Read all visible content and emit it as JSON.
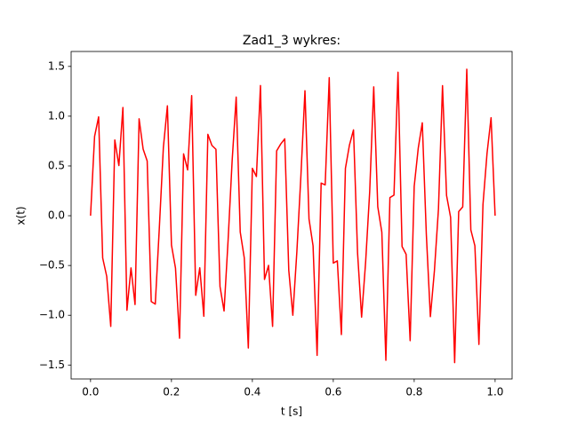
{
  "chart_data": {
    "type": "line",
    "title": "Zad1_3 wykres:",
    "x_label": "t [s]",
    "y_label": "x(t)",
    "x": [
      0,
      0.01,
      0.02,
      0.03,
      0.04,
      0.05,
      0.06,
      0.07,
      0.08,
      0.09,
      0.1,
      0.11,
      0.12,
      0.13,
      0.14,
      0.15,
      0.16,
      0.17,
      0.18,
      0.19,
      0.2,
      0.21,
      0.22,
      0.23,
      0.24,
      0.25,
      0.26,
      0.27,
      0.28,
      0.29,
      0.3,
      0.31,
      0.32,
      0.33,
      0.34,
      0.35,
      0.36,
      0.37,
      0.38,
      0.39,
      0.4,
      0.41,
      0.42,
      0.43,
      0.44,
      0.45,
      0.46,
      0.47,
      0.48,
      0.49,
      0.5,
      0.51,
      0.52,
      0.53,
      0.54,
      0.55,
      0.56,
      0.57,
      0.58,
      0.59,
      0.6,
      0.61,
      0.62,
      0.63,
      0.64,
      0.65,
      0.66,
      0.67,
      0.68,
      0.69,
      0.7,
      0.71,
      0.72,
      0.73,
      0.74,
      0.75,
      0.76,
      0.77,
      0.78,
      0.79,
      0.8,
      0.81,
      0.82,
      0.83,
      0.84,
      0.85,
      0.86,
      0.87,
      0.88,
      0.89,
      0.9,
      0.91,
      0.92,
      0.93,
      0.94,
      0.95,
      0.96,
      0.97,
      0.98,
      0.99,
      1.0
    ],
    "series": [
      {
        "name": "x(t)",
        "color": "#ff0000",
        "values": [
          0,
          0.797,
          0.993,
          -0.424,
          -0.609,
          -1.112,
          0.761,
          0.504,
          1.087,
          -0.95,
          -0.524,
          -0.892,
          0.973,
          0.669,
          0.55,
          -0.862,
          -0.888,
          -0.125,
          0.685,
          1.104,
          -0.294,
          -0.527,
          -1.231,
          0.621,
          0.46,
          1.207,
          -0.8,
          -0.523,
          -1.01,
          0.818,
          0.706,
          0.667,
          -0.712,
          -0.957,
          -0.246,
          0.552,
          1.192,
          -0.163,
          -0.424,
          -1.329,
          0.476,
          0.394,
          1.308,
          -0.64,
          -0.499,
          -1.112,
          0.651,
          0.72,
          0.772,
          -0.548,
          -1,
          -0.36,
          0.404,
          1.256,
          -0.033,
          -0.302,
          -1.403,
          0.328,
          0.31,
          1.387,
          -0.476,
          -0.453,
          -1.194,
          0.475,
          0.71,
          0.862,
          -0.372,
          -1.019,
          -0.464,
          0.241,
          1.294,
          0.09,
          -0.166,
          -1.453,
          0.182,
          0.207,
          1.442,
          -0.309,
          -0.387,
          -1.255,
          0.294,
          0.678,
          0.933,
          -0.187,
          -1.014,
          -0.552,
          0.068,
          1.307,
          0.203,
          -0.016,
          -1.476,
          0.042,
          0.089,
          1.472,
          -0.143,
          -0.302,
          -1.293,
          0.112,
          0.625,
          0.985,
          0
        ]
      }
    ],
    "xlim": [
      -0.048,
      1.042
    ],
    "ylim": [
      -1.64,
      1.65
    ],
    "xticks": [
      {
        "value": 0,
        "label": "0.0"
      },
      0.2,
      0.4,
      0.6,
      0.8,
      {
        "value": 1,
        "label": "1.0"
      }
    ],
    "yticks": [
      {
        "value": -1.5,
        "label": "−1.5"
      },
      {
        "value": -1,
        "label": "−1.0"
      },
      {
        "value": -0.5,
        "label": "−0.5"
      },
      {
        "value": 0,
        "label": "0.0"
      },
      {
        "value": 0.5,
        "label": "0.5"
      },
      {
        "value": 1,
        "label": "1.0"
      },
      {
        "value": 1.5,
        "label": "1.5"
      }
    ],
    "grid": false
  }
}
